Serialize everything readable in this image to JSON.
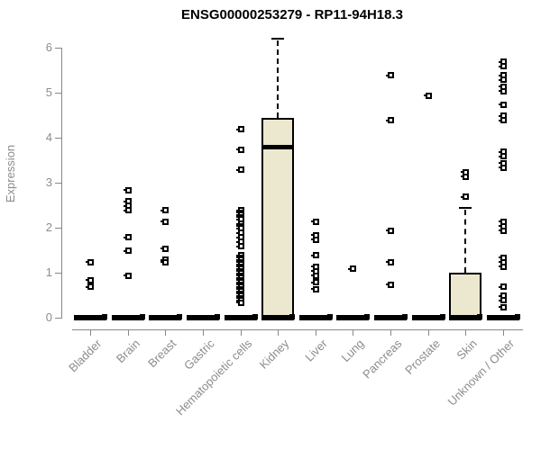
{
  "header": {
    "title": "ENSG00000253279 - RP11-94H18.3"
  },
  "chart_data": {
    "type": "boxplot",
    "title": "ENSG00000253279 - RP11-94H18.3",
    "ylabel": "Expression",
    "xlabel": "",
    "ylim": [
      0,
      6.2
    ],
    "yticks": [
      0,
      1,
      2,
      3,
      4,
      5,
      6
    ],
    "grid": false,
    "legend": "none",
    "colors": {
      "box_fill": "#ece8cf",
      "box_border": "#000000",
      "axis": "#888888",
      "axis_text": "#8c8c8c",
      "title_text": "#000000"
    },
    "categories": [
      "Bladder",
      "Brain",
      "Breast",
      "Gastric",
      "Hematopoietic cells",
      "Kidney",
      "Liver",
      "Lung",
      "Pancreas",
      "Prostate",
      "Skin",
      "Unknown / Other"
    ],
    "series": [
      {
        "category": "Bladder",
        "box": {
          "q1": 0,
          "median": 0,
          "q3": 0,
          "whisker_low": 0,
          "whisker_high": 0
        },
        "points": [
          1.25,
          0.85,
          0.7
        ]
      },
      {
        "category": "Brain",
        "box": {
          "q1": 0,
          "median": 0,
          "q3": 0,
          "whisker_low": 0,
          "whisker_high": 0
        },
        "points": [
          2.85,
          2.6,
          2.5,
          2.4,
          1.8,
          1.5,
          0.95
        ]
      },
      {
        "category": "Breast",
        "box": {
          "q1": 0,
          "median": 0,
          "q3": 0,
          "whisker_low": 0,
          "whisker_high": 0
        },
        "points": [
          2.4,
          2.15,
          1.55,
          1.3,
          1.25
        ]
      },
      {
        "category": "Gastric",
        "box": {
          "q1": 0,
          "median": 0,
          "q3": 0,
          "whisker_low": 0,
          "whisker_high": 0
        },
        "points": []
      },
      {
        "category": "Hematopoietic cells",
        "box": {
          "q1": 0,
          "median": 0,
          "q3": 0,
          "whisker_low": 0,
          "whisker_high": 0
        },
        "points": [
          4.2,
          3.75,
          3.3,
          2.4,
          2.35,
          2.3,
          2.25,
          2.2,
          2.1,
          2.05,
          2.0,
          1.9,
          1.8,
          1.7,
          1.6,
          1.4,
          1.35,
          1.3,
          1.25,
          1.2,
          1.15,
          1.1,
          1.05,
          1.0,
          0.95,
          0.9,
          0.85,
          0.8,
          0.75,
          0.7,
          0.65,
          0.6,
          0.55,
          0.5,
          0.45,
          0.4,
          0.35
        ]
      },
      {
        "category": "Kidney",
        "box": {
          "q1": 0,
          "median": 3.8,
          "q3": 4.45,
          "whisker_low": 0,
          "whisker_high": 6.2
        },
        "points": []
      },
      {
        "category": "Liver",
        "box": {
          "q1": 0,
          "median": 0,
          "q3": 0,
          "whisker_low": 0,
          "whisker_high": 0
        },
        "points": [
          2.15,
          1.85,
          1.75,
          1.4,
          1.15,
          1.05,
          0.95,
          0.8,
          0.65
        ]
      },
      {
        "category": "Lung",
        "box": {
          "q1": 0,
          "median": 0,
          "q3": 0,
          "whisker_low": 0,
          "whisker_high": 0
        },
        "points": [
          1.1
        ]
      },
      {
        "category": "Pancreas",
        "box": {
          "q1": 0,
          "median": 0,
          "q3": 0,
          "whisker_low": 0,
          "whisker_high": 0
        },
        "points": [
          5.4,
          4.4,
          1.95,
          1.25,
          0.75
        ]
      },
      {
        "category": "Prostate",
        "box": {
          "q1": 0,
          "median": 0,
          "q3": 0,
          "whisker_low": 0,
          "whisker_high": 0
        },
        "points": [
          4.95
        ]
      },
      {
        "category": "Skin",
        "box": {
          "q1": 0,
          "median": 0,
          "q3": 1.0,
          "whisker_low": 0,
          "whisker_high": 2.45
        },
        "points": [
          3.25,
          3.15,
          2.7
        ]
      },
      {
        "category": "Unknown / Other",
        "box": {
          "q1": 0,
          "median": 0,
          "q3": 0,
          "whisker_low": 0,
          "whisker_high": 0
        },
        "points": [
          5.7,
          5.6,
          5.4,
          5.3,
          5.15,
          5.05,
          4.75,
          4.5,
          4.4,
          3.7,
          3.6,
          3.45,
          3.35,
          2.15,
          2.05,
          1.95,
          1.35,
          1.25,
          1.15,
          0.7,
          0.5,
          0.4,
          0.25
        ]
      }
    ]
  }
}
